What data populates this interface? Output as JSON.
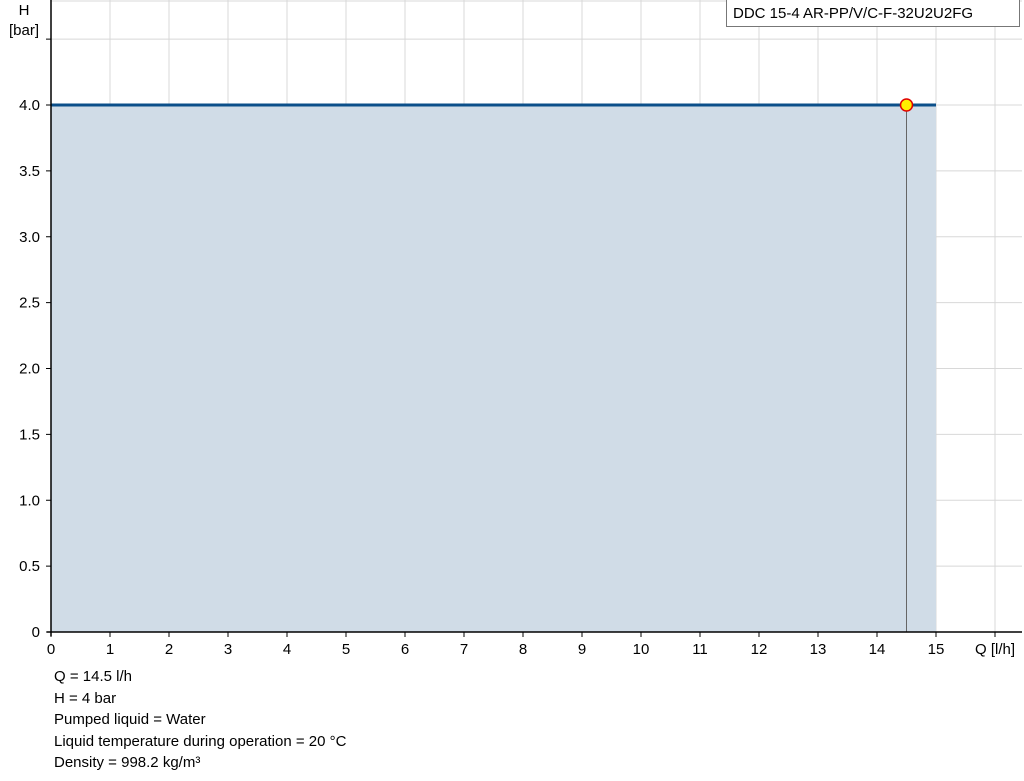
{
  "chart_data": {
    "type": "area",
    "title": "",
    "legend": "DDC 15-4 AR-PP/V/C-F-32U2U2FG",
    "legend_placement": "top-right",
    "xlabel": "Q [l/h]",
    "ylabel_line1": "H",
    "ylabel_line2": "[bar]",
    "xlim": [
      0,
      16
    ],
    "ylim": [
      0,
      4.5
    ],
    "grid": true,
    "x_ticks": [
      0,
      1,
      2,
      3,
      4,
      5,
      6,
      7,
      8,
      9,
      10,
      11,
      12,
      13,
      14,
      15
    ],
    "y_ticks": [
      0,
      0.5,
      1.0,
      1.5,
      2.0,
      2.5,
      3.0,
      3.5,
      4.0
    ],
    "y_tick_labels": [
      "0",
      "0.5",
      "1.0",
      "1.5",
      "2.0",
      "2.5",
      "3.0",
      "3.5",
      "4.0"
    ],
    "series": [
      {
        "x": [
          0,
          15
        ],
        "y": [
          4,
          4
        ],
        "color": "#0b4f8a",
        "fill": "#d0dce7"
      }
    ],
    "operating_point": {
      "x": 14.5,
      "y": 4,
      "color": "#ffee00",
      "stroke": "#e00000"
    }
  },
  "info": [
    "Q = 14.5 l/h",
    "H = 4 bar",
    "Pumped liquid = Water",
    "Liquid temperature during operation = 20 °C",
    "Density = 998.2 kg/m³"
  ]
}
